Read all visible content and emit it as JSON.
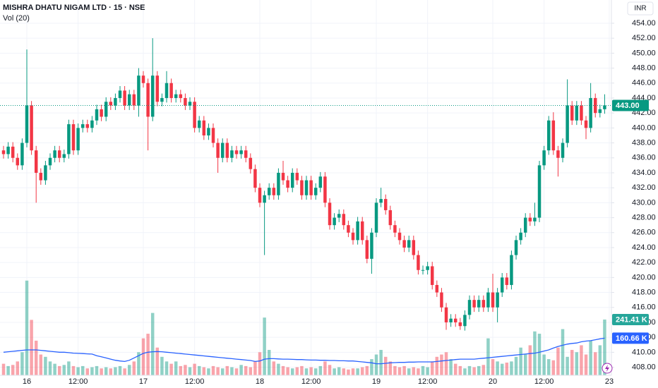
{
  "chart_data": {
    "type": "candlestick",
    "title": "MISHRA DHATU NIGAM LTD · 15 · NSE",
    "subtitle": "Vol (20)",
    "currency": "INR",
    "grid": true,
    "up_color": "#089981",
    "down_color": "#f23645",
    "ma_color": "#2962ff",
    "xlim": [
      -0.758,
      130.45
    ],
    "xticks": [
      {
        "value": 5,
        "label": "16"
      },
      {
        "value": 16,
        "label": "12:00"
      },
      {
        "value": 30,
        "label": "17"
      },
      {
        "value": 41,
        "label": "12:00"
      },
      {
        "value": 55,
        "label": "18"
      },
      {
        "value": 66,
        "label": "12:00"
      },
      {
        "value": 80,
        "label": "19"
      },
      {
        "value": 91,
        "label": "12:00"
      },
      {
        "value": 105,
        "label": "20"
      },
      {
        "value": 116,
        "label": "12:00"
      },
      {
        "value": 130,
        "label": "23"
      }
    ],
    "ylim": [
      406.92,
      457.11
    ],
    "yticks": [
      {
        "value": 408,
        "label": "408.00"
      },
      {
        "value": 410,
        "label": "410.00"
      },
      {
        "value": 412,
        "label": "412.00"
      },
      {
        "value": 414,
        "label": "414.00"
      },
      {
        "value": 416,
        "label": "416.00"
      },
      {
        "value": 418,
        "label": "418.00"
      },
      {
        "value": 420,
        "label": "420.00"
      },
      {
        "value": 422,
        "label": "422.00"
      },
      {
        "value": 424,
        "label": "424.00"
      },
      {
        "value": 426,
        "label": "426.00"
      },
      {
        "value": 428,
        "label": "428.00"
      },
      {
        "value": 430,
        "label": "430.00"
      },
      {
        "value": 432,
        "label": "432.00"
      },
      {
        "value": 434,
        "label": "434.00"
      },
      {
        "value": 436,
        "label": "436.00"
      },
      {
        "value": 438,
        "label": "438.00"
      },
      {
        "value": 440,
        "label": "440.00"
      },
      {
        "value": 442,
        "label": "442.00"
      },
      {
        "value": 444,
        "label": "444.00"
      },
      {
        "value": 446,
        "label": "446.00"
      },
      {
        "value": 448,
        "label": "448.00"
      },
      {
        "value": 450,
        "label": "450.00"
      },
      {
        "value": 452,
        "label": "452.00"
      },
      {
        "value": 454,
        "label": "454.00"
      }
    ],
    "y2lim": [
      0,
      1625000
    ],
    "open": [
      437,
      436.5,
      437.5,
      436,
      435,
      438,
      443,
      437,
      434,
      433,
      435,
      436,
      437,
      436,
      436.5,
      440.5,
      437,
      440,
      440.5,
      440,
      441,
      442.5,
      441.5,
      443.5,
      443,
      444,
      445,
      443,
      444.5,
      443,
      447,
      446,
      441.5,
      447,
      443.5,
      444,
      446,
      444,
      444.5,
      444,
      443,
      443.5,
      440,
      441,
      439,
      440,
      438,
      436,
      438,
      436,
      437,
      436.5,
      437,
      436,
      434.5,
      432,
      430,
      431,
      432,
      431,
      434,
      433,
      432,
      434,
      433,
      431,
      433,
      431,
      432,
      433.5,
      430,
      427,
      428,
      428.5,
      427,
      426,
      425,
      427.5,
      425,
      422.5,
      426,
      430,
      430.5,
      429,
      427,
      426,
      425,
      424,
      425,
      423,
      421,
      421,
      421.5,
      419,
      418,
      416,
      414,
      414.5,
      414,
      413.5,
      415,
      417,
      416,
      417,
      416,
      418,
      416,
      418,
      420,
      419,
      423,
      425,
      426,
      428,
      427.5,
      428,
      435,
      437,
      441,
      437,
      436,
      438,
      443,
      441,
      443,
      441,
      440,
      444,
      442,
      442.5
    ],
    "high": [
      437.6,
      438.1,
      438.1,
      436.6,
      438.6,
      450.5,
      443.6,
      437.6,
      434.6,
      435.6,
      436.6,
      437.6,
      437.6,
      437.1,
      441.1,
      441.1,
      440.6,
      441.1,
      441.1,
      441.6,
      443.1,
      443.1,
      444.1,
      444.1,
      444.6,
      445.6,
      445.6,
      445.1,
      445.1,
      448,
      447.6,
      446.6,
      452,
      447.6,
      444.6,
      447.6,
      446.6,
      445.1,
      445.1,
      444.6,
      444.1,
      444.1,
      441.6,
      441.6,
      440.6,
      440.6,
      438.6,
      438.6,
      438.6,
      437.6,
      437.6,
      437.6,
      437.6,
      436.6,
      435.1,
      432.6,
      431.6,
      432.6,
      432.6,
      434.6,
      435.6,
      433.6,
      434.6,
      434.6,
      433.6,
      433.6,
      433.6,
      432.6,
      434.1,
      434.1,
      430.6,
      428.6,
      429.1,
      429.1,
      427.6,
      426.6,
      428.1,
      428.1,
      425.6,
      426.6,
      430.6,
      432,
      431.1,
      429.6,
      427.6,
      426.6,
      425.6,
      425.6,
      425.6,
      423.6,
      421.6,
      422.1,
      422.1,
      419.6,
      418.6,
      416.6,
      415.1,
      415.1,
      414.6,
      415.6,
      417.6,
      417.6,
      417.6,
      417.6,
      418.6,
      420.5,
      418.6,
      420.6,
      420.6,
      423.6,
      425.6,
      426.6,
      428.6,
      428.6,
      430,
      435.6,
      437.6,
      441.6,
      442.1,
      437.6,
      438.6,
      446.5,
      443.6,
      443.6,
      443.6,
      441.6,
      446,
      444.6,
      443.1,
      444.5
    ],
    "low": [
      435.9,
      435.9,
      435.4,
      434.4,
      434.4,
      437.4,
      436.4,
      430,
      432.4,
      432.4,
      434.4,
      435.4,
      435.4,
      435.4,
      435.9,
      436.4,
      436.4,
      439.4,
      439.4,
      439.4,
      440.4,
      440.9,
      440.9,
      442.4,
      442.4,
      443.4,
      442.4,
      442.4,
      442.4,
      441.5,
      445.4,
      437,
      440.9,
      442.9,
      442.9,
      443.4,
      443.4,
      443.4,
      443.4,
      442.4,
      442.4,
      439.4,
      439.4,
      438.4,
      438.4,
      437.4,
      434,
      435.4,
      435.4,
      435.4,
      435.9,
      435.9,
      435.4,
      433.9,
      431.4,
      429.4,
      423,
      430.4,
      430.4,
      430.4,
      432.4,
      431.4,
      431.4,
      432.4,
      430.4,
      430.4,
      430.4,
      430.4,
      431.4,
      429.4,
      426.4,
      426.4,
      427.4,
      426.4,
      425.4,
      424.4,
      424.4,
      424.4,
      421.9,
      420.5,
      425.4,
      429.4,
      428.4,
      426.4,
      425.4,
      424.4,
      423.4,
      423.4,
      422.4,
      420.4,
      420.4,
      420.4,
      418.4,
      417.4,
      415.4,
      413,
      413.4,
      413.4,
      413,
      412.9,
      414.4,
      415.4,
      415.4,
      415.4,
      415.4,
      415.4,
      414,
      417.4,
      418.4,
      418.4,
      422.4,
      424.4,
      425.4,
      426.9,
      426.9,
      427.4,
      434.4,
      436.4,
      436.4,
      433.5,
      435.4,
      437.4,
      440.4,
      440.4,
      440.4,
      438.5,
      439.4,
      441.4,
      441.4,
      441.9
    ],
    "close": [
      436.5,
      437.5,
      436,
      435,
      438,
      443,
      437,
      434,
      433,
      435,
      436,
      437,
      436,
      436.5,
      440.5,
      437,
      440,
      440.5,
      440,
      441,
      442.5,
      441.5,
      443.5,
      443,
      444,
      445,
      443,
      444.5,
      443,
      447,
      446,
      441.5,
      447,
      443.5,
      444,
      446,
      444,
      444.5,
      444,
      443,
      443.5,
      440,
      441,
      439,
      440,
      438,
      436,
      438,
      436,
      437,
      436.5,
      437,
      436,
      434.5,
      432,
      430,
      431,
      432,
      431,
      434,
      433,
      432,
      434,
      433,
      431,
      433,
      431,
      432,
      433.5,
      430,
      427,
      428,
      428.5,
      427,
      426,
      425,
      427.5,
      425,
      422.5,
      426,
      430,
      430.5,
      429,
      427,
      426,
      425,
      424,
      425,
      423,
      421,
      421,
      421.5,
      419,
      418,
      416,
      414,
      414.5,
      414,
      413.5,
      415,
      417,
      416,
      417,
      416,
      418,
      416,
      418,
      420,
      419,
      423,
      425,
      426,
      428,
      427.5,
      428,
      435,
      437,
      441,
      437,
      436,
      438,
      443,
      441,
      443,
      441,
      440,
      444,
      442,
      442.5,
      443
    ],
    "volume": [
      50000,
      40000,
      45000,
      60000,
      100000,
      410000,
      240000,
      150000,
      90000,
      80000,
      60000,
      50000,
      40000,
      45000,
      60000,
      40000,
      35000,
      40000,
      30000,
      35000,
      40000,
      30000,
      35000,
      30000,
      35000,
      40000,
      30000,
      45000,
      60000,
      100000,
      160000,
      180000,
      270000,
      120000,
      80000,
      60000,
      50000,
      60000,
      40000,
      45000,
      35000,
      50000,
      40000,
      35000,
      30000,
      40000,
      35000,
      30000,
      40000,
      35000,
      30000,
      45000,
      40000,
      35000,
      60000,
      100000,
      250000,
      110000,
      60000,
      50000,
      40000,
      35000,
      30000,
      35000,
      40000,
      30000,
      35000,
      30000,
      40000,
      60000,
      45000,
      30000,
      35000,
      30000,
      25000,
      30000,
      30000,
      35000,
      40000,
      70000,
      90000,
      110000,
      80000,
      60000,
      40000,
      35000,
      40000,
      30000,
      35000,
      30000,
      40000,
      35000,
      60000,
      80000,
      90000,
      100000,
      70000,
      50000,
      40000,
      30000,
      40000,
      35000,
      40000,
      45000,
      160000,
      70000,
      60000,
      50000,
      55000,
      60000,
      80000,
      120000,
      90000,
      130000,
      190000,
      180000,
      90000,
      70000,
      65000,
      120000,
      200000,
      80000,
      110000,
      100000,
      130000,
      90000,
      150000,
      100000,
      130000,
      241410
    ],
    "volume_ma": [
      100000,
      102000,
      104000,
      106000,
      108000,
      110000,
      110000,
      110000,
      108000,
      106000,
      104000,
      102000,
      100000,
      100000,
      98000,
      96000,
      95000,
      94000,
      93000,
      92000,
      85000,
      80000,
      75000,
      70000,
      65000,
      62000,
      60000,
      65000,
      75000,
      85000,
      95000,
      100000,
      102000,
      103000,
      102000,
      100000,
      98000,
      96000,
      94000,
      92000,
      90000,
      88000,
      86000,
      84000,
      82000,
      80000,
      78000,
      76000,
      74000,
      72000,
      70000,
      68000,
      66000,
      64000,
      60000,
      62000,
      70000,
      72000,
      72000,
      71000,
      70000,
      70000,
      69000,
      68000,
      68000,
      67000,
      66000,
      66000,
      65000,
      65000,
      64000,
      64000,
      63000,
      63000,
      62000,
      62000,
      60000,
      58000,
      56000,
      54000,
      50000,
      50000,
      52000,
      54000,
      55000,
      56000,
      56000,
      57000,
      57000,
      58000,
      58000,
      58000,
      58000,
      60000,
      62000,
      64000,
      66000,
      68000,
      70000,
      70000,
      70000,
      70000,
      72000,
      74000,
      76000,
      78000,
      80000,
      82000,
      84000,
      86000,
      88000,
      90000,
      92000,
      94000,
      96000,
      100000,
      105000,
      110000,
      118000,
      125000,
      130000,
      135000,
      138000,
      140000,
      145000,
      148000,
      150000,
      154000,
      158000,
      160660
    ],
    "last_close_label": "443.00",
    "last_volume_label": "241.41 K",
    "last_ma_label": "160.66 K"
  }
}
